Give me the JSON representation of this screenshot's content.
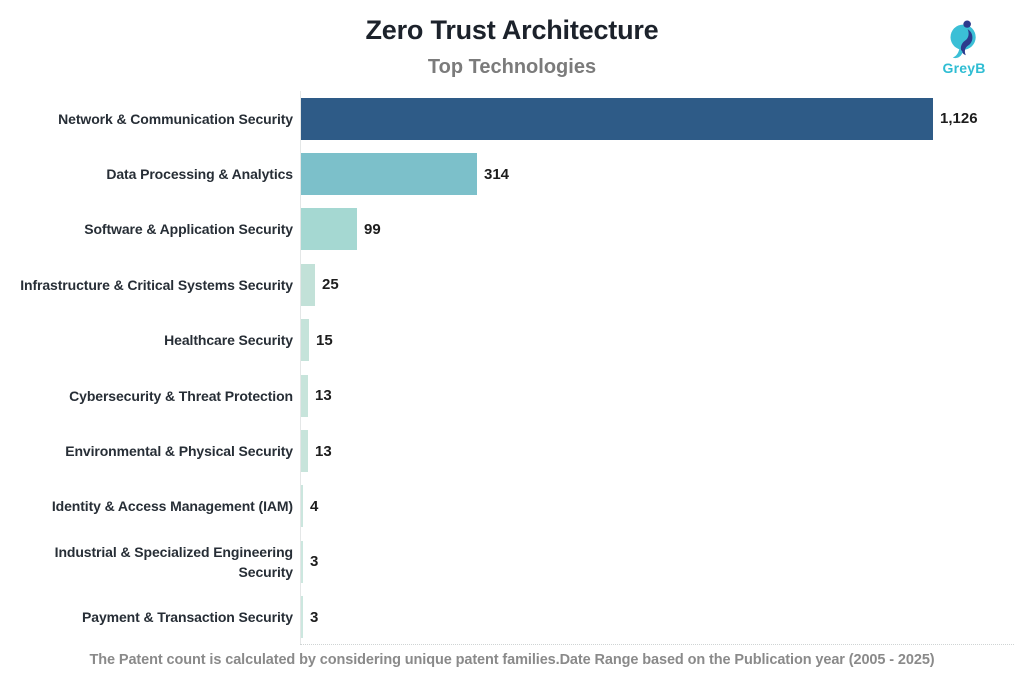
{
  "logo": {
    "brand": "GreyB"
  },
  "colors": {
    "accent_teal": "#3bbfd6",
    "accent_navy": "#2c3a8c",
    "title_text": "#1c222b",
    "subtitle_text": "#7b7b7b",
    "footnote_text": "#8a8a8a"
  },
  "chart_data": {
    "type": "bar",
    "orientation": "horizontal",
    "title": "Zero Trust Architecture",
    "subtitle": "Top Technologies",
    "categories": [
      "Network & Communication Security",
      "Data Processing & Analytics",
      "Software & Application Security",
      "Infrastructure & Critical Systems Security",
      "Healthcare Security",
      "Cybersecurity & Threat Protection",
      "Environmental & Physical Security",
      "Identity & Access Management (IAM)",
      "Industrial & Specialized Engineering Security",
      "Payment & Transaction Security"
    ],
    "values": [
      1126,
      314,
      99,
      25,
      15,
      13,
      13,
      4,
      3,
      3
    ],
    "value_labels": [
      "1,126",
      "314",
      "99",
      "25",
      "15",
      "13",
      "13",
      "4",
      "3",
      "3"
    ],
    "bar_colors": [
      "#2e5b87",
      "#7cc0ca",
      "#a5d8d2",
      "#c2e1d8",
      "#c5e3da",
      "#c7e4db",
      "#c7e4db",
      "#cbe6de",
      "#cce7df",
      "#cce7df"
    ],
    "xlabel": "",
    "ylabel": "",
    "xlim": [
      0,
      1270
    ],
    "grid": false,
    "axis_visible": false,
    "legend": null,
    "footnote": "The Patent count is calculated by considering unique patent families.Date Range based on the Publication year (2005 - 2025)"
  }
}
